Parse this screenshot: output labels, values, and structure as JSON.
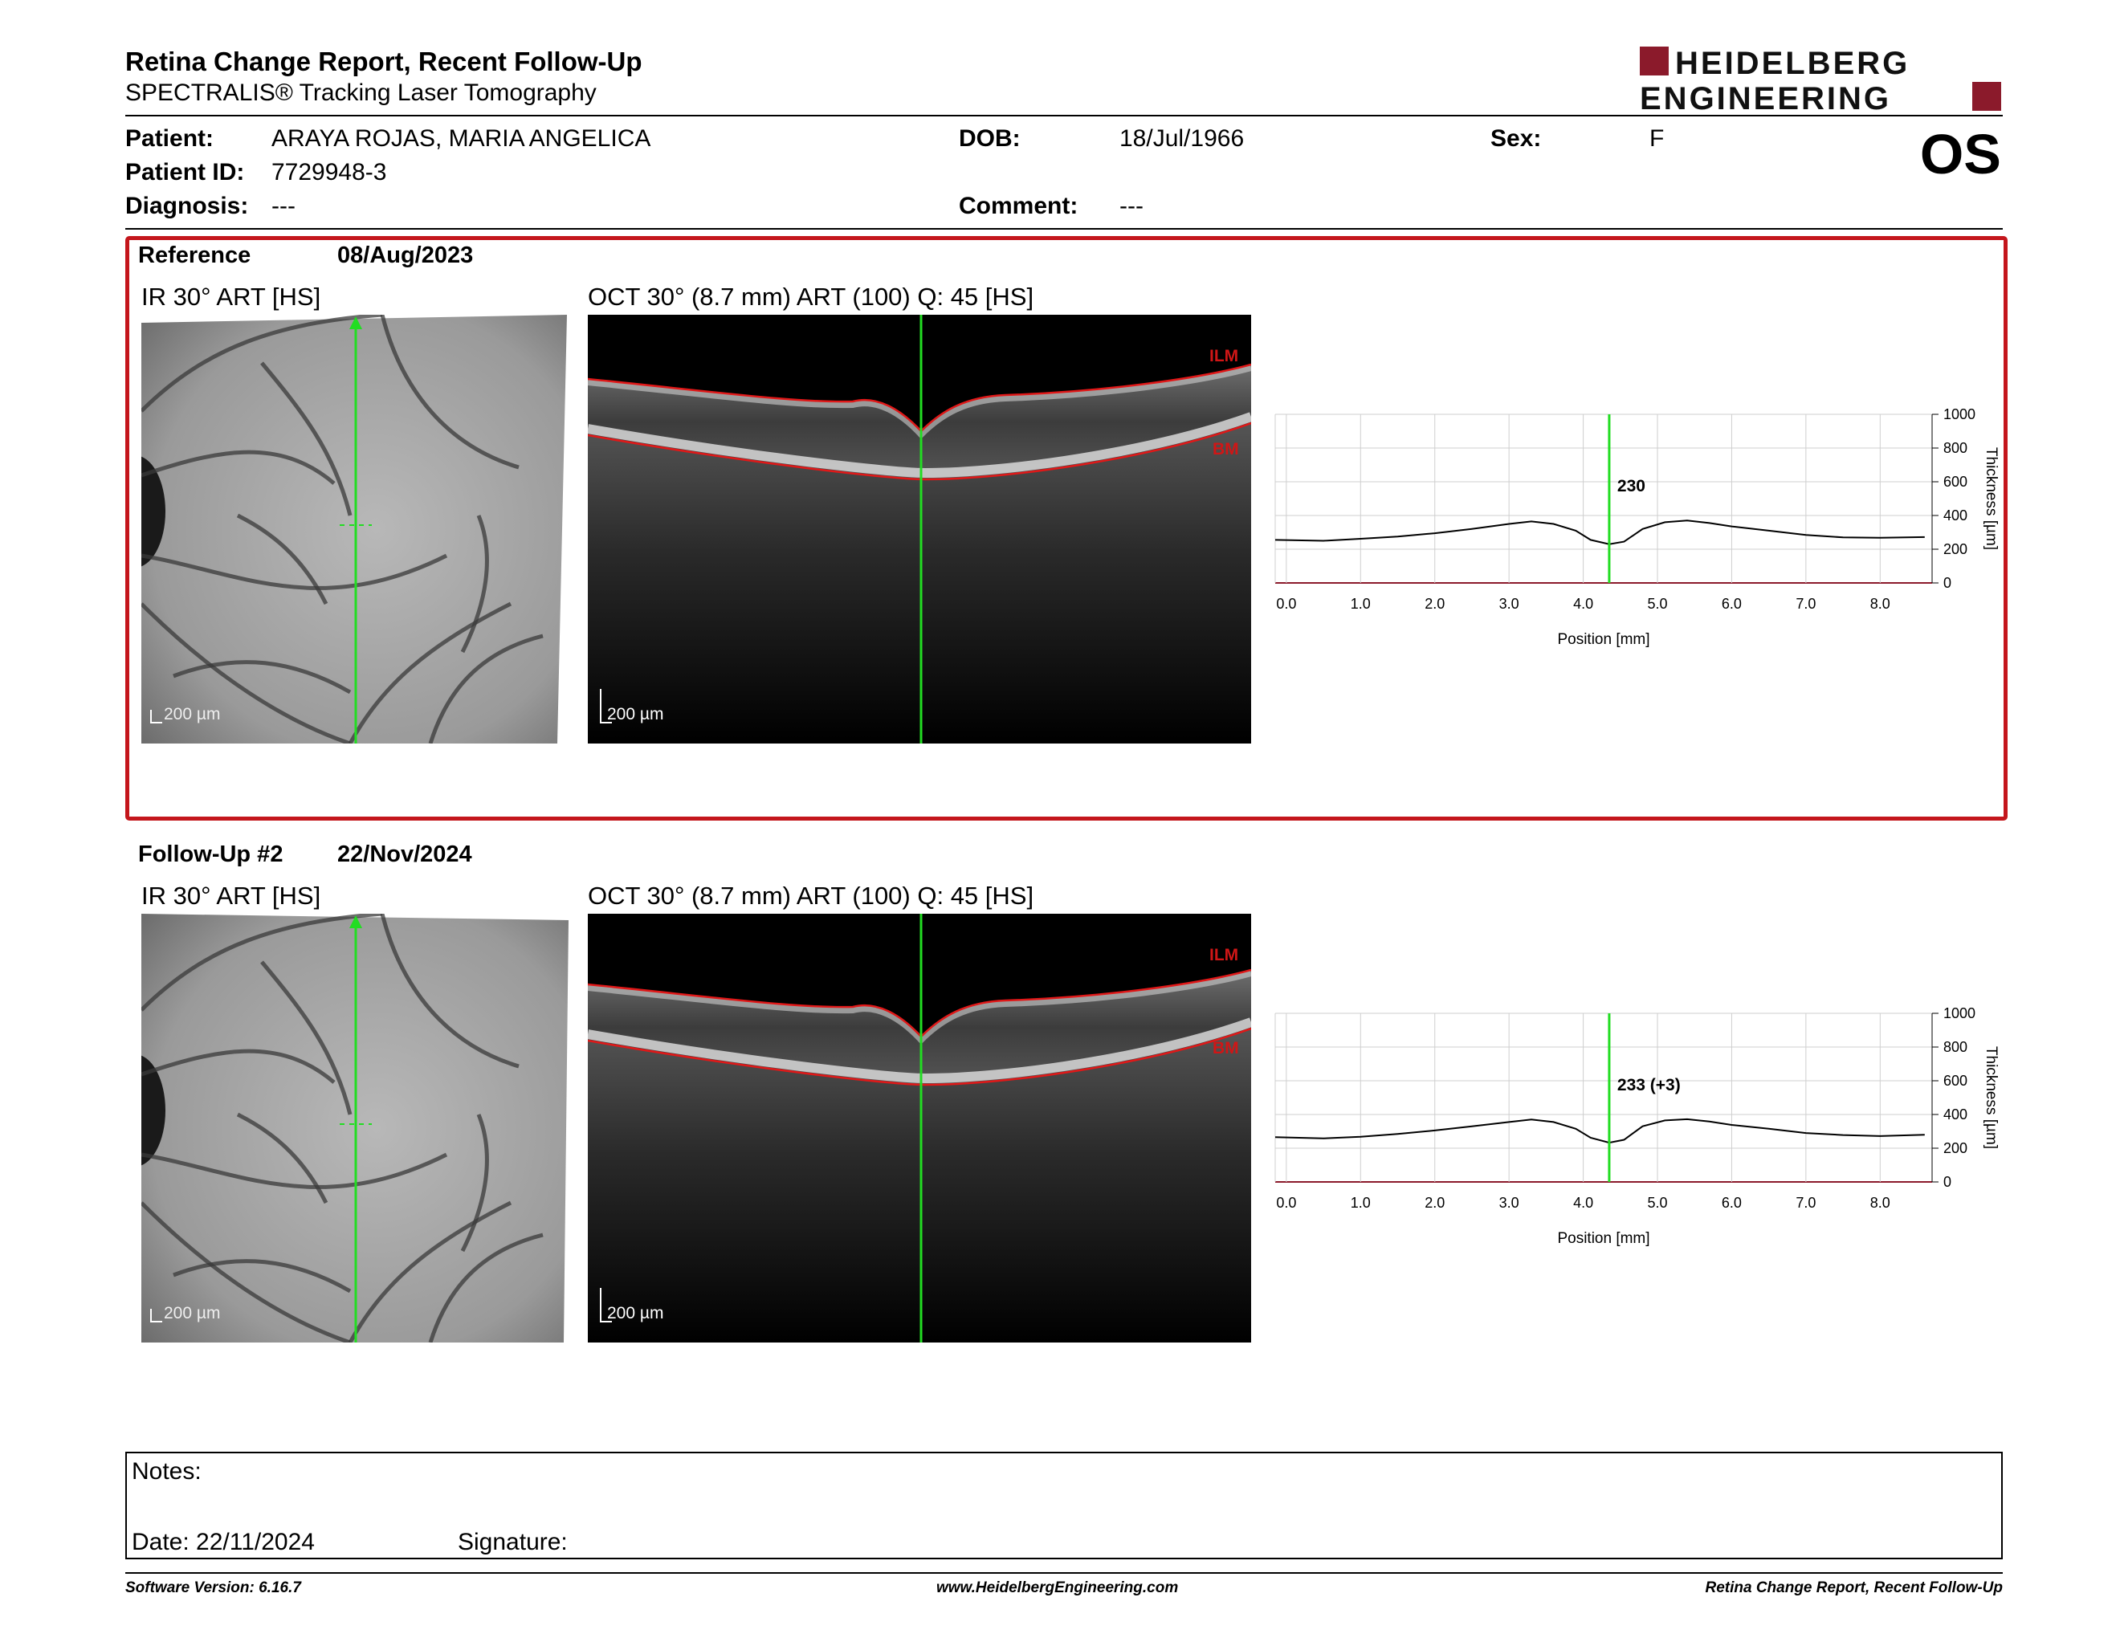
{
  "header": {
    "title": "Retina Change Report, Recent Follow-Up",
    "subtitle": "SPECTRALIS® Tracking Laser Tomography",
    "eye": "OS",
    "logo_text": [
      "HEIDELBERG",
      "ENGINEERING"
    ]
  },
  "patient": {
    "patient_label": "Patient:",
    "patient_value": "ARAYA ROJAS, MARIA ANGELICA",
    "id_label": "Patient ID:",
    "id_value": "7729948-3",
    "diagnosis_label": "Diagnosis:",
    "diagnosis_value": "---",
    "dob_label": "DOB:",
    "dob_value": "18/Jul/1966",
    "comment_label": "Comment:",
    "comment_value": "---",
    "sex_label": "Sex:",
    "sex_value": "F"
  },
  "colors": {
    "accent": "#c4161c",
    "scan_line": "#22dd22",
    "layer": "#e01818"
  },
  "exams": [
    {
      "label": "Reference",
      "date": "08/Aug/2023",
      "ir_title": "IR 30° ART [HS]",
      "oct_title": "OCT 30° (8.7 mm) ART (100) Q: 45 [HS]",
      "scale_label": "200 µm",
      "layer_top": "ILM",
      "layer_bottom": "BM",
      "thickness_label": "230"
    },
    {
      "label": "Follow-Up #2",
      "date": "22/Nov/2024",
      "ir_title": "IR 30° ART [HS]",
      "oct_title": "OCT 30° (8.7 mm) ART (100) Q: 45 [HS]",
      "scale_label": "200 µm",
      "layer_top": "ILM",
      "layer_bottom": "BM",
      "thickness_label": "233 (+3)"
    }
  ],
  "chart_data": [
    {
      "type": "line",
      "title": "",
      "xlabel": "Position [mm]",
      "ylabel": "Thickness [µm]",
      "xlim": [
        -0.15,
        8.7
      ],
      "ylim": [
        0,
        1000
      ],
      "x_ticks": [
        "0.0",
        "1.0",
        "2.0",
        "3.0",
        "4.0",
        "5.0",
        "6.0",
        "7.0",
        "8.0"
      ],
      "y_ticks": [
        "0",
        "200",
        "400",
        "600",
        "800",
        "1000"
      ],
      "marker_x": 4.35,
      "marker_label": "230",
      "series": [
        {
          "x": [
            -0.15,
            0.5,
            1.0,
            1.5,
            2.0,
            2.5,
            3.0,
            3.3,
            3.6,
            3.9,
            4.1,
            4.35,
            4.55,
            4.8,
            5.1,
            5.4,
            5.7,
            6.0,
            6.5,
            7.0,
            7.5,
            8.0,
            8.6
          ],
          "values": [
            255,
            250,
            262,
            275,
            295,
            320,
            350,
            365,
            350,
            310,
            255,
            230,
            245,
            320,
            360,
            370,
            355,
            335,
            310,
            285,
            270,
            268,
            272
          ]
        }
      ]
    },
    {
      "type": "line",
      "title": "",
      "xlabel": "Position [mm]",
      "ylabel": "Thickness [µm]",
      "xlim": [
        -0.15,
        8.7
      ],
      "ylim": [
        0,
        1000
      ],
      "x_ticks": [
        "0.0",
        "1.0",
        "2.0",
        "3.0",
        "4.0",
        "5.0",
        "6.0",
        "7.0",
        "8.0"
      ],
      "y_ticks": [
        "0",
        "200",
        "400",
        "600",
        "800",
        "1000"
      ],
      "marker_x": 4.35,
      "marker_label": "233 (+3)",
      "series": [
        {
          "x": [
            -0.15,
            0.5,
            1.0,
            1.5,
            2.0,
            2.5,
            3.0,
            3.3,
            3.6,
            3.9,
            4.1,
            4.35,
            4.55,
            4.8,
            5.1,
            5.4,
            5.7,
            6.0,
            6.5,
            7.0,
            7.5,
            8.0,
            8.6
          ],
          "values": [
            265,
            258,
            268,
            285,
            305,
            330,
            355,
            370,
            355,
            315,
            262,
            233,
            250,
            330,
            365,
            372,
            358,
            338,
            315,
            290,
            278,
            272,
            280
          ]
        }
      ]
    }
  ],
  "notes": {
    "notes_label": "Notes:",
    "date_label": "Date: 22/11/2024",
    "signature_label": "Signature:"
  },
  "footer": {
    "version": "Software Version: 6.16.7",
    "website": "www.HeidelbergEngineering.com",
    "report": "Retina Change Report, Recent Follow-Up"
  }
}
